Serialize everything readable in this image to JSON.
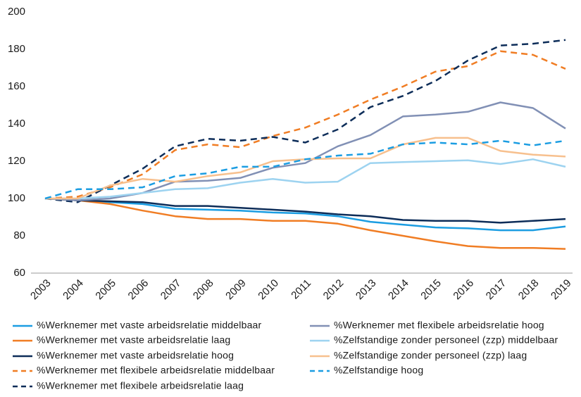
{
  "chart_data": {
    "type": "line",
    "categories": [
      "2003",
      "2004",
      "2005",
      "2006",
      "2007",
      "2008",
      "2009",
      "2010",
      "2011",
      "2012",
      "2013",
      "2014",
      "2015",
      "2016",
      "2017",
      "2018",
      "2019"
    ],
    "ylim": [
      60,
      200
    ],
    "yticks": [
      60,
      80,
      100,
      120,
      140,
      160,
      180,
      200
    ],
    "grid": false,
    "series": [
      {
        "name": "%Werknemer met vaste arbeidsrelatie middelbaar",
        "color": "#1b9de2",
        "dashed": false,
        "values": [
          100,
          99,
          98,
          97,
          94.5,
          94,
          93.5,
          92.5,
          92,
          90.5,
          87.5,
          86,
          84.5,
          84,
          83,
          83,
          85
        ]
      },
      {
        "name": "%Werknemer met vaste arbeidsrelatie laag",
        "color": "#f07d24",
        "dashed": false,
        "values": [
          100,
          99,
          97,
          93.5,
          90.5,
          89,
          89,
          88,
          88,
          86.5,
          83,
          80,
          77,
          74.5,
          73.5,
          73.5,
          73
        ]
      },
      {
        "name": "%Werknemer met vaste arbeidsrelatie hoog",
        "color": "#0d2d59",
        "dashed": false,
        "values": [
          100,
          99,
          98.5,
          98,
          96,
          96,
          95,
          94,
          93,
          91.5,
          90.5,
          88.5,
          88,
          88,
          87,
          88,
          89
        ]
      },
      {
        "name": "%Werknemer met flexibele arbeidsrelatie middelbaar",
        "color": "#f07d24",
        "dashed": true,
        "values": [
          100,
          101,
          106,
          113,
          126,
          129,
          127.5,
          133.5,
          138,
          145,
          153,
          160,
          168,
          171,
          179,
          177,
          169.5
        ]
      },
      {
        "name": "%Werknemer met flexibele arbeidsrelatie laag",
        "color": "#0d2d59",
        "dashed": true,
        "values": [
          100,
          98,
          107,
          116,
          128,
          132,
          131,
          133,
          130,
          137,
          149,
          155,
          163,
          174,
          182,
          183,
          185
        ]
      },
      {
        "name": "%Werknemer met flexibele arbeidsrelatie hoog",
        "color": "#8190b5",
        "dashed": false,
        "values": [
          100,
          99,
          100,
          103,
          109,
          109.5,
          111,
          116.5,
          119,
          128,
          134,
          144,
          145,
          146.5,
          151.5,
          148.5,
          137.5
        ]
      },
      {
        "name": "%Zelfstandige zonder personeel (zzp) middelbaar",
        "color": "#9dd3f0",
        "dashed": false,
        "values": [
          100,
          100,
          101,
          103,
          105,
          105.5,
          108.5,
          110.5,
          108.5,
          109,
          119,
          119.5,
          120,
          120.5,
          118.5,
          121,
          117
        ]
      },
      {
        "name": "%Zelfstandige zonder personeel (zzp) laag",
        "color": "#f7c08e",
        "dashed": false,
        "values": [
          100,
          100,
          107,
          110.5,
          109,
          112,
          114,
          120,
          121,
          121.5,
          121.5,
          129,
          132.5,
          132.5,
          125.5,
          123.5,
          122.5
        ]
      },
      {
        "name": "%Zelfstandige hoog",
        "color": "#1b9de2",
        "dashed": true,
        "values": [
          100,
          105,
          105,
          106,
          112,
          113.5,
          117,
          117,
          121,
          123,
          124,
          129,
          130,
          129,
          131,
          128.5,
          131
        ]
      }
    ]
  }
}
